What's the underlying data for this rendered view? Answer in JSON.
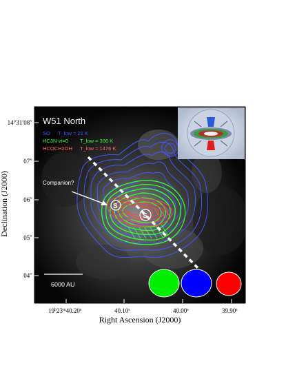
{
  "chart_data": {
    "type": "contour",
    "title": "W51 North",
    "xlabel": "Right Ascension (J2000)",
    "ylabel": "Declination (J2000)",
    "x_ticks": [
      {
        "value": "19h23m40.20s",
        "pre": "19",
        "h": "h",
        "mid": "23",
        "m": "m",
        "s": "40.20",
        "sup": "s"
      },
      {
        "value": "40.10s",
        "pre": "40.10",
        "sup": "s"
      },
      {
        "value": "40.00s",
        "pre": "40.00",
        "sup": "s"
      },
      {
        "value": "39.90s",
        "pre": "39.90",
        "sup": "s"
      }
    ],
    "y_ticks": [
      {
        "label": "14°31′08″"
      },
      {
        "label": "07″"
      },
      {
        "label": "06″"
      },
      {
        "label": "05″"
      },
      {
        "label": "04″"
      }
    ],
    "series": [
      {
        "name": "SO",
        "t_low": "T_low = 21 K",
        "color": "#4455ff"
      },
      {
        "name": "HC3N vt=0",
        "t_low": "T_low = 306 K",
        "color": "#33ff33"
      },
      {
        "name": "HCOCH2OH",
        "t_low": "T_low = 1476 K",
        "color": "#ff4444"
      }
    ],
    "annotations": {
      "companion": "Companion?",
      "scale_bar": "6000 AU",
      "source_labels": [
        "S",
        "S"
      ]
    },
    "beam_colors": [
      "#00ee00",
      "#0000ff",
      "#ff0000"
    ]
  }
}
